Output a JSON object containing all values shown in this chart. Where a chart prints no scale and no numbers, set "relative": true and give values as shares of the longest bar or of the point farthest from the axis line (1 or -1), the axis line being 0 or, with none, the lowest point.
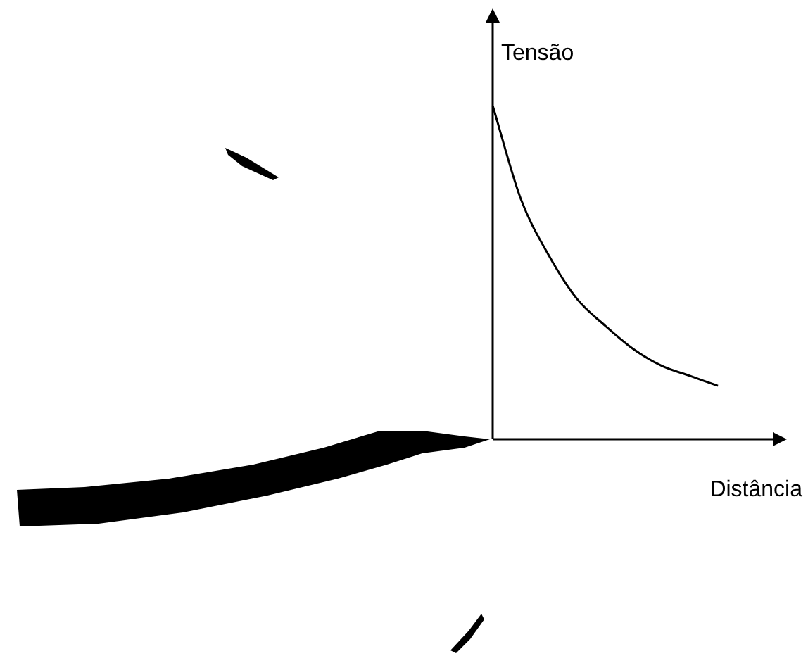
{
  "chart_data": {
    "type": "line",
    "xlabel": "Distância",
    "ylabel": "Tensão",
    "relative": true,
    "categories": [
      null,
      null,
      null,
      null,
      null,
      null,
      null,
      null,
      null
    ],
    "series": [
      {
        "color": "#000000",
        "values": [
          1,
          0.72,
          0.55,
          0.42,
          0.34,
          0.27,
          0.22,
          0.19,
          0.16
        ]
      }
    ],
    "legend": false,
    "marker": "none",
    "line_style": "solid"
  }
}
